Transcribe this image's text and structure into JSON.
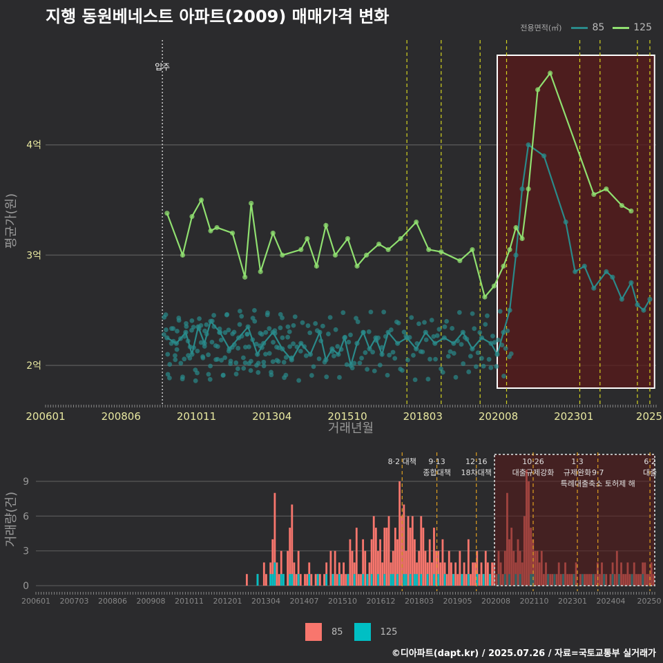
{
  "title": "지행 동원베네스트 아파트(2009) 매매가격 변화",
  "legend": {
    "title": "전용면적(㎡)",
    "items": [
      {
        "label": "85",
        "line_color": "#2a8a8a",
        "bar_color": "#f8766d"
      },
      {
        "label": "125",
        "line_color": "#90e070",
        "bar_color": "#00bfc4"
      }
    ]
  },
  "credit": "©디아파트(dapt.kr) / 2025.07.26 / 자료=국토교통부 실거래가",
  "chart_data": [
    {
      "type": "line",
      "title": "price",
      "xlabel": "거래년월",
      "ylabel": "평균가(원)",
      "x_ticks": [
        "200601",
        "200806",
        "201011",
        "201304",
        "201510",
        "201803",
        "202008",
        "202301",
        "2025"
      ],
      "x_range": [
        2006.0,
        2025.6
      ],
      "y_ticks": [
        {
          "v": 2.0,
          "label": "2억"
        },
        {
          "v": 3.0,
          "label": "3억"
        },
        {
          "v": 4.0,
          "label": "4억"
        }
      ],
      "ylim": [
        1.65,
        4.95
      ],
      "move_in": {
        "x": 2009.75,
        "label": "입주"
      },
      "policy_lines": [
        2017.6,
        2018.7,
        2019.95,
        2020.8,
        2023.15,
        2023.8,
        2025.0,
        2025.4
      ],
      "highlight": {
        "x0": 2020.5,
        "x1": 2025.55
      },
      "series": [
        {
          "name": "85",
          "x": [
            2009.9,
            2010.2,
            2010.5,
            2010.7,
            2010.9,
            2011.1,
            2011.3,
            2011.6,
            2011.9,
            2012.2,
            2012.5,
            2012.8,
            2013.0,
            2013.3,
            2013.6,
            2013.9,
            2014.2,
            2014.5,
            2014.8,
            2015.0,
            2015.2,
            2015.4,
            2015.6,
            2015.8,
            2016.0,
            2016.2,
            2016.4,
            2016.6,
            2016.8,
            2017.0,
            2017.3,
            2017.6,
            2017.9,
            2018.2,
            2018.5,
            2018.8,
            2019.1,
            2019.4,
            2019.7,
            2020.0,
            2020.3,
            2020.5,
            2020.7,
            2020.9,
            2021.1,
            2021.3,
            2021.5,
            2022.0,
            2022.7,
            2023.0,
            2023.3,
            2023.6,
            2024.0,
            2024.2,
            2024.5,
            2024.8,
            2025.0,
            2025.2,
            2025.4
          ],
          "y": [
            2.25,
            2.2,
            2.3,
            2.1,
            2.35,
            2.2,
            2.4,
            2.3,
            2.15,
            2.25,
            2.35,
            2.1,
            2.2,
            2.3,
            2.15,
            2.05,
            2.2,
            2.1,
            2.3,
            2.05,
            2.15,
            2.1,
            2.25,
            2.0,
            2.2,
            2.3,
            2.15,
            2.25,
            2.1,
            2.3,
            2.2,
            2.25,
            2.15,
            2.3,
            2.2,
            2.25,
            2.2,
            2.3,
            2.15,
            2.25,
            2.2,
            2.1,
            2.3,
            2.5,
            3.0,
            3.6,
            4.0,
            3.9,
            3.3,
            2.85,
            2.9,
            2.7,
            2.85,
            2.8,
            2.6,
            2.75,
            2.55,
            2.5,
            2.6
          ]
        },
        {
          "name": "125",
          "x": [
            2009.9,
            2010.4,
            2010.7,
            2011.0,
            2011.3,
            2011.5,
            2012.0,
            2012.4,
            2012.6,
            2012.9,
            2013.3,
            2013.6,
            2014.2,
            2014.4,
            2014.7,
            2015.0,
            2015.3,
            2015.7,
            2016.0,
            2016.3,
            2016.7,
            2017.0,
            2017.4,
            2017.9,
            2018.3,
            2018.7,
            2019.3,
            2019.7,
            2020.1,
            2020.4,
            2020.7,
            2020.9,
            2021.1,
            2021.3,
            2021.5,
            2021.8,
            2022.2,
            2023.6,
            2024.0,
            2024.5,
            2024.8
          ],
          "y": [
            3.38,
            3.0,
            3.35,
            3.5,
            3.22,
            3.25,
            3.2,
            2.8,
            3.47,
            2.85,
            3.2,
            3.0,
            3.05,
            3.15,
            2.9,
            3.27,
            3.0,
            3.15,
            2.9,
            3.0,
            3.1,
            3.05,
            3.15,
            3.3,
            3.05,
            3.03,
            2.95,
            3.05,
            2.62,
            2.72,
            2.9,
            3.05,
            3.25,
            3.15,
            3.6,
            4.5,
            4.65,
            3.55,
            3.6,
            3.45,
            3.4
          ]
        }
      ]
    },
    {
      "type": "bar",
      "title": "volume",
      "ylabel": "거래량(건)",
      "y_ticks": [
        0,
        3,
        6,
        9
      ],
      "ylim": [
        0,
        11.5
      ],
      "x_ticks": [
        "200601",
        "200703",
        "200806",
        "200908",
        "201011",
        "201201",
        "201304",
        "201407",
        "201510",
        "201612",
        "201803",
        "201905",
        "202008",
        "202110",
        "202301",
        "202404",
        "20250"
      ],
      "policy_annotations": [
        {
          "x": 2017.6,
          "lines": [
            "8·2 대책"
          ]
        },
        {
          "x": 2018.7,
          "lines": [
            "9·13",
            "종합대책"
          ]
        },
        {
          "x": 2019.95,
          "lines": [
            "12·16",
            "18차대책"
          ]
        },
        {
          "x": 2021.75,
          "lines": [
            "10·26",
            "대출규제강화"
          ]
        },
        {
          "x": 2023.15,
          "lines": [
            "1·3",
            "규제완화"
          ]
        },
        {
          "x": 2023.8,
          "lines": [
            "",
            "9·7",
            "특례대출축소 토허제 해"
          ]
        },
        {
          "x": 2025.45,
          "lines": [
            "6·2",
            "대출"
          ]
        }
      ],
      "series": [
        {
          "name": "85",
          "values": [
            0,
            0,
            0,
            0,
            0,
            0,
            0,
            0,
            0,
            0,
            0,
            0,
            0,
            0,
            0,
            0,
            0,
            0,
            0,
            0,
            0,
            0,
            0,
            0,
            0,
            0,
            0,
            0,
            0,
            0,
            0,
            0,
            0,
            0,
            0,
            0,
            0,
            0,
            0,
            0,
            0,
            0,
            0,
            1,
            0,
            0,
            0,
            0,
            1,
            0,
            0,
            2,
            1,
            0,
            2,
            4,
            8,
            2,
            1,
            3,
            1,
            0,
            3,
            5,
            7,
            2,
            1,
            3,
            1,
            0,
            1,
            1,
            2,
            1,
            0,
            1,
            1,
            1,
            0,
            1,
            2,
            0,
            3,
            1,
            3,
            1,
            2,
            1,
            2,
            1,
            1,
            4,
            3,
            2,
            5,
            1,
            1,
            4,
            3,
            1,
            2,
            4,
            6,
            5,
            3,
            4,
            2,
            5,
            5,
            6,
            2,
            3,
            5,
            4,
            9,
            6,
            7,
            3,
            6,
            5,
            6,
            4,
            2,
            3,
            6,
            5,
            3,
            2,
            4,
            2,
            5,
            3,
            3,
            2,
            4,
            2,
            1,
            3,
            2,
            1,
            2,
            1,
            3,
            1,
            2,
            1,
            4,
            1,
            2,
            2,
            3,
            1,
            2,
            1,
            3,
            2,
            1,
            2,
            2,
            1,
            3,
            2,
            1,
            3,
            8,
            4,
            5,
            3,
            2,
            4,
            3,
            2,
            6,
            10,
            9,
            5,
            4,
            3,
            3,
            2,
            3,
            1,
            2,
            1,
            1,
            1,
            0,
            1,
            2,
            1,
            1,
            2,
            1,
            1,
            1,
            1,
            2,
            0,
            1,
            0,
            1,
            1,
            1,
            1,
            0,
            1,
            2,
            1,
            2,
            1,
            1,
            0,
            1,
            2,
            1,
            3,
            1,
            2,
            1,
            1,
            2,
            1,
            0,
            2,
            1,
            1,
            1,
            2,
            2,
            1,
            1,
            2,
            1
          ]
        },
        {
          "name": "125",
          "values": [
            0,
            0,
            0,
            0,
            0,
            0,
            0,
            0,
            0,
            0,
            0,
            0,
            0,
            0,
            0,
            0,
            0,
            0,
            0,
            0,
            0,
            0,
            0,
            0,
            0,
            0,
            0,
            0,
            0,
            0,
            0,
            0,
            0,
            0,
            0,
            0,
            0,
            0,
            0,
            0,
            0,
            0,
            0,
            0,
            0,
            0,
            0,
            0,
            1,
            0,
            0,
            0,
            0,
            0,
            1,
            1,
            2,
            0,
            0,
            1,
            1,
            0,
            0,
            1,
            1,
            0,
            0,
            1,
            0,
            0,
            0,
            0,
            1,
            0,
            0,
            0,
            1,
            0,
            0,
            0,
            1,
            0,
            0,
            1,
            0,
            0,
            1,
            0,
            0,
            0,
            1,
            0,
            0,
            1,
            0,
            0,
            0,
            1,
            0,
            1,
            0,
            1,
            0,
            0,
            1,
            0,
            0,
            1,
            0,
            0,
            1,
            1,
            0,
            1,
            0,
            0,
            1,
            1,
            0,
            1,
            0,
            1,
            1,
            0,
            1,
            0,
            0,
            1,
            0,
            0,
            1,
            0,
            1,
            0,
            0,
            1,
            0,
            0,
            0,
            1,
            0,
            0,
            0,
            1,
            0,
            0,
            1,
            0,
            0,
            0,
            1,
            0,
            0,
            1,
            0,
            0,
            1,
            0,
            0,
            0,
            1,
            0,
            0,
            1,
            0,
            1,
            0,
            0,
            1,
            0,
            1,
            0,
            0,
            0,
            0,
            1,
            1,
            0,
            0,
            0,
            0,
            0,
            0,
            1,
            0,
            0,
            1,
            0,
            0,
            0,
            1,
            0,
            0,
            0,
            0,
            1,
            0,
            0,
            0,
            1,
            0,
            0,
            0,
            0,
            1,
            0,
            0,
            0,
            0,
            1,
            0,
            0,
            0,
            1,
            0,
            0,
            1,
            0,
            0,
            0,
            0,
            0,
            1,
            0,
            0,
            0,
            0,
            1,
            0,
            0,
            0,
            0,
            0
          ]
        }
      ]
    }
  ]
}
